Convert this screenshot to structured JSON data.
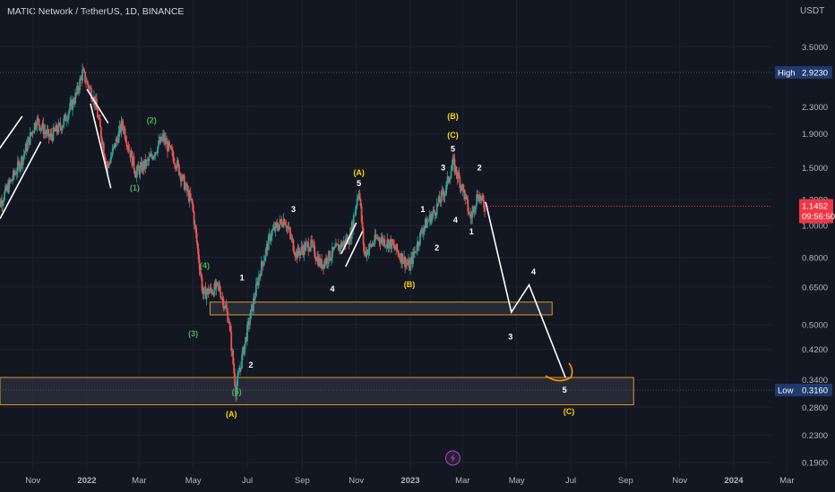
{
  "header": {
    "title": "MATIC Network / TetherUS, 1D, BINANCE",
    "currency": "USDT"
  },
  "colors": {
    "background": "#131722",
    "grid": "#1e222d",
    "text": "#b2b5be",
    "up": "#26a69a",
    "down": "#ef5350",
    "annotation_line": "#ffffff",
    "zone_stroke": "#d89a2b",
    "zone_fill": "#2a2e39",
    "wave_white": "#ffffff",
    "wave_green": "#4caf50",
    "wave_yellow": "#ffd600",
    "current_price_bg": "#f23645",
    "high_low_bg": "#1e3a6e",
    "curve_orange": "#ff9800",
    "lightning": "#ab47bc"
  },
  "chart_data": {
    "type": "candlestick",
    "title": "MATIC Network / TetherUS, 1D, BINANCE",
    "y_scale": "log",
    "ylim": [
      0.18,
      4.2
    ],
    "y_ticks": [
      {
        "value": 3.5,
        "label": "3.5000"
      },
      {
        "value": 2.3,
        "label": "2.3000"
      },
      {
        "value": 1.9,
        "label": "1.9000"
      },
      {
        "value": 1.5,
        "label": "1.5000"
      },
      {
        "value": 1.2,
        "label": "1.2000"
      },
      {
        "value": 1.0,
        "label": "1.0000"
      },
      {
        "value": 0.8,
        "label": "0.8000"
      },
      {
        "value": 0.65,
        "label": "0.6500"
      },
      {
        "value": 0.5,
        "label": "0.5000"
      },
      {
        "value": 0.42,
        "label": "0.4200"
      },
      {
        "value": 0.34,
        "label": "0.3400"
      },
      {
        "value": 0.28,
        "label": "0.2800"
      },
      {
        "value": 0.23,
        "label": "0.2300"
      },
      {
        "value": 0.19,
        "label": "0.1900"
      }
    ],
    "x_ticks": [
      {
        "date": "2021-11-01",
        "label": "Nov",
        "bold": false
      },
      {
        "date": "2022-01-01",
        "label": "2022",
        "bold": true
      },
      {
        "date": "2022-03-01",
        "label": "Mar",
        "bold": false
      },
      {
        "date": "2022-05-01",
        "label": "May",
        "bold": false
      },
      {
        "date": "2022-07-01",
        "label": "Jul",
        "bold": false
      },
      {
        "date": "2022-09-01",
        "label": "Sep",
        "bold": false
      },
      {
        "date": "2022-11-01",
        "label": "Nov",
        "bold": false
      },
      {
        "date": "2023-01-01",
        "label": "2023",
        "bold": true
      },
      {
        "date": "2023-03-01",
        "label": "Mar",
        "bold": false
      },
      {
        "date": "2023-05-01",
        "label": "May",
        "bold": false
      },
      {
        "date": "2023-07-01",
        "label": "Jul",
        "bold": false
      },
      {
        "date": "2023-09-01",
        "label": "Sep",
        "bold": false
      },
      {
        "date": "2023-11-01",
        "label": "Nov",
        "bold": false
      },
      {
        "date": "2024-01-01",
        "label": "2024",
        "bold": true
      },
      {
        "date": "2024-03-01",
        "label": "Mar",
        "bold": false
      }
    ],
    "price_path": [
      {
        "date": "2021-09-20",
        "close": 1.1
      },
      {
        "date": "2021-10-20",
        "close": 1.6
      },
      {
        "date": "2021-11-05",
        "close": 2.1
      },
      {
        "date": "2021-11-20",
        "close": 1.85
      },
      {
        "date": "2021-12-05",
        "close": 2.05
      },
      {
        "date": "2021-12-20",
        "close": 2.5
      },
      {
        "date": "2021-12-27",
        "close": 2.92
      },
      {
        "date": "2022-01-10",
        "close": 2.4
      },
      {
        "date": "2022-01-24",
        "close": 1.5
      },
      {
        "date": "2022-02-10",
        "close": 2.05
      },
      {
        "date": "2022-02-25",
        "close": 1.45
      },
      {
        "date": "2022-03-10",
        "close": 1.55
      },
      {
        "date": "2022-03-28",
        "close": 1.85
      },
      {
        "date": "2022-04-12",
        "close": 1.55
      },
      {
        "date": "2022-04-30",
        "close": 1.15
      },
      {
        "date": "2022-05-12",
        "close": 0.62
      },
      {
        "date": "2022-05-30",
        "close": 0.65
      },
      {
        "date": "2022-06-10",
        "close": 0.52
      },
      {
        "date": "2022-06-18",
        "close": 0.316
      },
      {
        "date": "2022-07-01",
        "close": 0.48
      },
      {
        "date": "2022-07-15",
        "close": 0.72
      },
      {
        "date": "2022-07-28",
        "close": 0.95
      },
      {
        "date": "2022-08-12",
        "close": 1.05
      },
      {
        "date": "2022-08-25",
        "close": 0.82
      },
      {
        "date": "2022-09-10",
        "close": 0.88
      },
      {
        "date": "2022-09-22",
        "close": 0.76
      },
      {
        "date": "2022-10-10",
        "close": 0.85
      },
      {
        "date": "2022-10-25",
        "close": 0.92
      },
      {
        "date": "2022-11-04",
        "close": 1.3
      },
      {
        "date": "2022-11-10",
        "close": 0.82
      },
      {
        "date": "2022-11-25",
        "close": 0.92
      },
      {
        "date": "2022-12-10",
        "close": 0.88
      },
      {
        "date": "2022-12-31",
        "close": 0.75
      },
      {
        "date": "2023-01-15",
        "close": 0.98
      },
      {
        "date": "2023-01-28",
        "close": 1.1
      },
      {
        "date": "2023-02-10",
        "close": 1.3
      },
      {
        "date": "2023-02-18",
        "close": 1.55
      },
      {
        "date": "2023-03-01",
        "close": 1.3
      },
      {
        "date": "2023-03-10",
        "close": 1.05
      },
      {
        "date": "2023-03-18",
        "close": 1.25
      },
      {
        "date": "2023-03-26",
        "close": 1.145
      }
    ],
    "current_price": {
      "value": 1.1452,
      "label": "1.1452",
      "countdown": "09:56:50"
    },
    "high": {
      "value": 2.923,
      "label": "High",
      "price": "2.9230"
    },
    "low": {
      "value": 0.316,
      "label": "Low",
      "price": "0.3160"
    },
    "zones": [
      {
        "from_date": "2022-05-20",
        "to_date": "2023-06-10",
        "low": 0.535,
        "high": 0.585
      },
      {
        "from_date": "2021-09-15",
        "to_date": "2023-09-10",
        "low": 0.285,
        "high": 0.345
      }
    ],
    "projection": [
      {
        "date": "2023-03-27",
        "price": 1.18
      },
      {
        "date": "2023-04-25",
        "price": 0.545
      },
      {
        "date": "2023-05-15",
        "price": 0.66
      },
      {
        "date": "2023-06-25",
        "price": 0.345
      }
    ],
    "trend_lines": [
      [
        {
          "date": "2021-09-20",
          "price": 1.65
        },
        {
          "date": "2021-10-20",
          "price": 2.15
        }
      ],
      [
        {
          "date": "2021-09-25",
          "price": 1.05
        },
        {
          "date": "2021-11-10",
          "price": 1.8
        }
      ],
      [
        {
          "date": "2022-01-01",
          "price": 2.6
        },
        {
          "date": "2022-01-25",
          "price": 2.05
        }
      ],
      [
        {
          "date": "2022-01-05",
          "price": 2.35
        },
        {
          "date": "2022-01-28",
          "price": 1.3
        }
      ],
      [
        {
          "date": "2022-10-15",
          "price": 0.82
        },
        {
          "date": "2022-11-01",
          "price": 1.02
        }
      ],
      [
        {
          "date": "2022-10-20",
          "price": 0.75
        },
        {
          "date": "2022-11-08",
          "price": 0.96
        }
      ]
    ],
    "wave_labels": [
      {
        "text": "(1)",
        "date": "2022-02-24",
        "price": 1.28,
        "color": "green"
      },
      {
        "text": "(2)",
        "date": "2022-03-15",
        "price": 2.05,
        "color": "green"
      },
      {
        "text": "(3)",
        "date": "2022-05-01",
        "price": 0.46,
        "color": "green"
      },
      {
        "text": "(4)",
        "date": "2022-05-14",
        "price": 0.74,
        "color": "green"
      },
      {
        "text": "(5)",
        "date": "2022-06-19",
        "price": 0.306,
        "color": "green"
      },
      {
        "text": "(A)",
        "date": "2022-06-13",
        "price": 0.262,
        "color": "yellow"
      },
      {
        "text": "1",
        "date": "2022-06-25",
        "price": 0.68,
        "color": "white"
      },
      {
        "text": "2",
        "date": "2022-07-05",
        "price": 0.37,
        "color": "white"
      },
      {
        "text": "3",
        "date": "2022-08-22",
        "price": 1.1,
        "color": "white"
      },
      {
        "text": "4",
        "date": "2022-10-05",
        "price": 0.63,
        "color": "white"
      },
      {
        "text": "5",
        "date": "2022-11-04",
        "price": 1.32,
        "color": "white"
      },
      {
        "text": "(A)",
        "date": "2022-11-04",
        "price": 1.42,
        "color": "yellow"
      },
      {
        "text": "(B)",
        "date": "2022-12-31",
        "price": 0.65,
        "color": "yellow"
      },
      {
        "text": "1",
        "date": "2023-01-15",
        "price": 1.1,
        "color": "white"
      },
      {
        "text": "2",
        "date": "2023-01-31",
        "price": 0.84,
        "color": "white"
      },
      {
        "text": "3",
        "date": "2023-02-07",
        "price": 1.47,
        "color": "white"
      },
      {
        "text": "4",
        "date": "2023-02-21",
        "price": 1.02,
        "color": "white"
      },
      {
        "text": "5",
        "date": "2023-02-18",
        "price": 1.68,
        "color": "white"
      },
      {
        "text": "(C)",
        "date": "2023-02-18",
        "price": 1.85,
        "color": "yellow"
      },
      {
        "text": "(B)",
        "date": "2023-02-18",
        "price": 2.11,
        "color": "yellow"
      },
      {
        "text": "1",
        "date": "2023-03-11",
        "price": 0.94,
        "color": "white"
      },
      {
        "text": "2",
        "date": "2023-03-20",
        "price": 1.47,
        "color": "white"
      },
      {
        "text": "3",
        "date": "2023-04-24",
        "price": 0.45,
        "color": "white"
      },
      {
        "text": "4",
        "date": "2023-05-20",
        "price": 0.71,
        "color": "white"
      },
      {
        "text": "5",
        "date": "2023-06-24",
        "price": 0.31,
        "color": "white"
      },
      {
        "text": "(C)",
        "date": "2023-06-29",
        "price": 0.267,
        "color": "yellow"
      }
    ]
  }
}
